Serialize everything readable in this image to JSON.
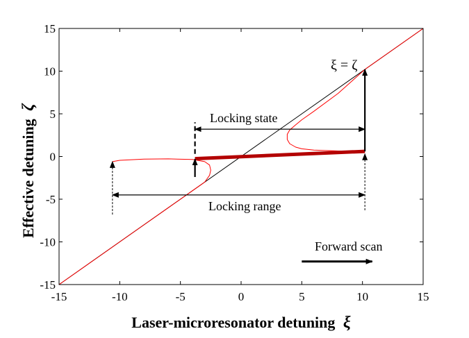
{
  "chart_data": {
    "type": "line",
    "title": "",
    "xlabel": "Laser-microresonator detuning",
    "xlabel_symbol": "ξ",
    "ylabel": "Effective detuning",
    "ylabel_symbol": "ζ",
    "xlim": [
      -15,
      15
    ],
    "ylim": [
      -15,
      15
    ],
    "xticks": [
      "-15",
      "-10",
      "-5",
      "0",
      "5",
      "10",
      "15"
    ],
    "yticks": [
      "-15",
      "-10",
      "-5",
      "0",
      "5",
      "10",
      "15"
    ],
    "grid": false,
    "series": [
      {
        "name": "",
        "color": "#000000",
        "x": [
          -15,
          15
        ],
        "y": [
          -15,
          15
        ]
      },
      {
        "name": "",
        "color": "#ff0000",
        "style": "resonance-curve-left",
        "x": [
          -15,
          -12,
          -10.6,
          -10,
          -8,
          -6,
          -4.6,
          -4,
          -3.4,
          -3.0,
          -2.6,
          -2.5,
          -2.6,
          -3.0,
          -4.0,
          -6.0,
          -8.0,
          -10.0,
          -10.6
        ],
        "y": [
          -15,
          -12,
          -10.6,
          -10,
          -8,
          -6,
          -4.6,
          -4.0,
          -3.4,
          -3.0,
          -2.2,
          -1.6,
          -1.0,
          -0.6,
          -0.35,
          -0.28,
          -0.3,
          -0.45,
          -0.6
        ]
      },
      {
        "name": "",
        "color": "#ff0000",
        "style": "resonance-curve-right",
        "x": [
          10.2,
          8,
          6,
          5,
          4.5,
          4.0,
          3.8,
          3.8,
          4.0,
          4.4,
          5.0,
          6.0,
          8.0,
          10.2,
          12,
          15
        ],
        "y": [
          0.6,
          0.65,
          0.75,
          0.9,
          1.1,
          1.5,
          2.0,
          2.6,
          3.1,
          3.6,
          4.3,
          5.3,
          7.4,
          10.2,
          12,
          15
        ]
      },
      {
        "name": "",
        "color": "#b30000",
        "style": "locking-state",
        "x": [
          -3.8,
          10.2
        ],
        "y": [
          -0.25,
          0.6
        ]
      }
    ],
    "annotations": {
      "identity_label": "ξ = ζ",
      "locking_state_label": "Locking state",
      "locking_range_label": "Locking range",
      "forward_scan_label": "Forward scan",
      "locking_state_arrow": {
        "x": [
          -3.8,
          10.2
        ],
        "y": 3.2
      },
      "locking_range_arrow": {
        "x": [
          -10.6,
          10.2
        ],
        "y": -4.5
      },
      "left_jump": {
        "x": -3.8,
        "y": [
          -2.4,
          -0.3
        ]
      },
      "left_dashed_jump": {
        "x": -3.8,
        "y": [
          0.3,
          4.0
        ]
      },
      "right_jump": {
        "x": 10.2,
        "y": [
          0.6,
          10.2
        ]
      },
      "left_boundary": {
        "x": -10.6,
        "y": [
          -6.8,
          -0.6
        ]
      },
      "right_boundary": {
        "x": 10.2,
        "y": [
          -6.3,
          0.3
        ]
      },
      "forward_scan_arrow": {
        "x": [
          5,
          10.8
        ],
        "y": -12.3
      }
    }
  }
}
